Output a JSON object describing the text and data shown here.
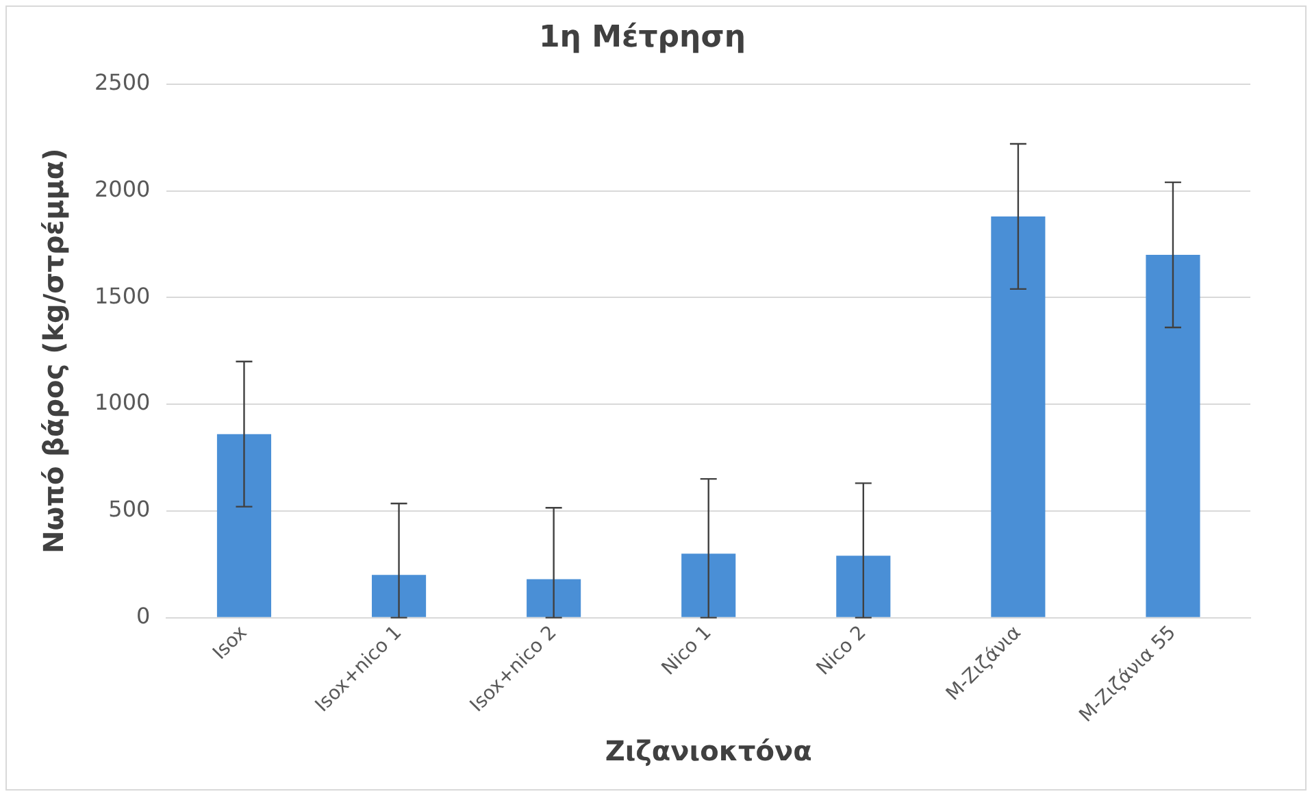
{
  "chart_data": {
    "type": "bar",
    "title": "1η Μέτρηση",
    "xlabel": "Ζιζανιοκτόνα",
    "ylabel": "Νωπό βάρος (kg/στρέμμα)",
    "categories": [
      "Isox",
      "Isox+nico 1",
      "Isox+nico 2",
      "Nico 1",
      "Nico 2",
      "M-Ζιζάνια",
      "M-Ζιζάνια 55"
    ],
    "values": [
      860,
      200,
      180,
      300,
      290,
      1880,
      1700
    ],
    "errors": [
      340,
      [
        0,
        535
      ],
      [
        0,
        515
      ],
      [
        0,
        650
      ],
      [
        0,
        630
      ],
      340,
      340
    ],
    "color": "#4a8fd6",
    "ylim": [
      0,
      2500
    ],
    "yticks": [
      0,
      500,
      1000,
      1500,
      2000,
      2500
    ],
    "grid": "y"
  }
}
